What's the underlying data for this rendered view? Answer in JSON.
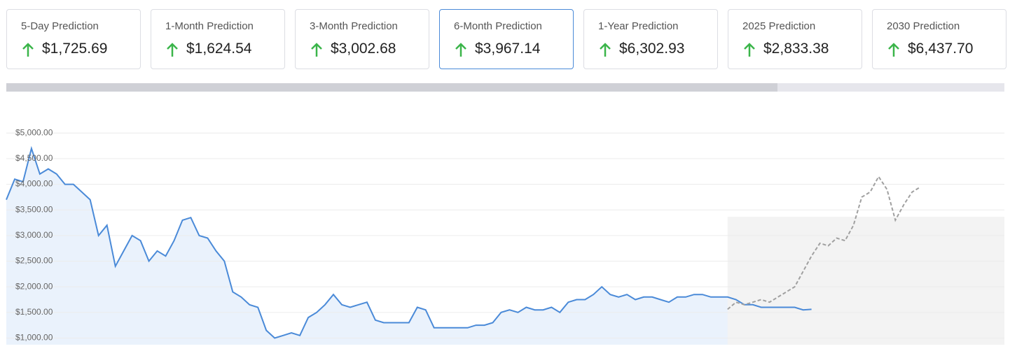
{
  "cards": [
    {
      "label": "5-Day Prediction",
      "value": "$1,725.69"
    },
    {
      "label": "1-Month Prediction",
      "value": "$1,624.54"
    },
    {
      "label": "3-Month Prediction",
      "value": "$3,002.68"
    },
    {
      "label": "6-Month Prediction",
      "value": "$3,967.14"
    },
    {
      "label": "1-Year Prediction",
      "value": "$6,302.93"
    },
    {
      "label": "2025 Prediction",
      "value": "$2,833.38"
    },
    {
      "label": "2030 Prediction",
      "value": "$6,437.70"
    }
  ],
  "chart_data": {
    "type": "line",
    "ylim": [
      870,
      5140
    ],
    "yticks": [
      {
        "value": 1000,
        "label": "$1,000.00"
      },
      {
        "value": 1500,
        "label": "$1,500.00"
      },
      {
        "value": 2000,
        "label": "$2,000.00"
      },
      {
        "value": 2500,
        "label": "$2,500.00"
      },
      {
        "value": 3000,
        "label": "$3,000.00"
      },
      {
        "value": 3500,
        "label": "$3,500.00"
      },
      {
        "value": 4000,
        "label": "$4,000.00"
      },
      {
        "value": 4500,
        "label": "$4,500.00"
      },
      {
        "value": 5000,
        "label": "$5,000.00"
      }
    ],
    "grid": true,
    "series": [
      {
        "color": "#4a8ad8",
        "fill": "#eaf2fc",
        "dashed": false,
        "values": [
          3700,
          4100,
          4050,
          4700,
          4200,
          4300,
          4200,
          4000,
          4000,
          3850,
          3700,
          3000,
          3200,
          2400,
          2700,
          3000,
          2900,
          2500,
          2700,
          2600,
          2900,
          3300,
          3350,
          3000,
          2950,
          2700,
          2500,
          1900,
          1800,
          1650,
          1600,
          1150,
          1000,
          1050,
          1100,
          1050,
          1400,
          1500,
          1650,
          1850,
          1650,
          1600,
          1650,
          1700,
          1350,
          1300,
          1300,
          1300,
          1300,
          1600,
          1550,
          1200,
          1200,
          1200,
          1200,
          1200,
          1250,
          1250,
          1300,
          1500,
          1550,
          1500,
          1600,
          1550,
          1550,
          1600,
          1500,
          1700,
          1750,
          1750,
          1850,
          2000,
          1850,
          1800,
          1850,
          1750,
          1800,
          1800,
          1750,
          1700,
          1800,
          1800,
          1850,
          1850,
          1800,
          1800,
          1800,
          1750,
          1650,
          1650,
          1600,
          1600,
          1600,
          1600,
          1600,
          1550,
          1560,
          null,
          null,
          null,
          null,
          null,
          null,
          null,
          null,
          null,
          null,
          null,
          null,
          null,
          null,
          null,
          null,
          null,
          null,
          null,
          null,
          null,
          null,
          null
        ]
      },
      {
        "color": "#a0a0a0",
        "fill": "#f3f3f3",
        "dashed": true,
        "values": [
          null,
          null,
          null,
          null,
          null,
          null,
          null,
          null,
          null,
          null,
          null,
          null,
          null,
          null,
          null,
          null,
          null,
          null,
          null,
          null,
          null,
          null,
          null,
          null,
          null,
          null,
          null,
          null,
          null,
          null,
          null,
          null,
          null,
          null,
          null,
          null,
          null,
          null,
          null,
          null,
          null,
          null,
          null,
          null,
          null,
          null,
          null,
          null,
          null,
          null,
          null,
          null,
          null,
          null,
          null,
          null,
          null,
          null,
          null,
          null,
          null,
          null,
          null,
          null,
          null,
          null,
          null,
          null,
          null,
          null,
          null,
          null,
          null,
          null,
          null,
          null,
          null,
          null,
          null,
          null,
          null,
          null,
          null,
          null,
          null,
          null,
          1560,
          1700,
          1650,
          1700,
          1750,
          1700,
          1800,
          1900,
          2000,
          2300,
          2600,
          2850,
          2800,
          2950,
          2900,
          3200,
          3750,
          3850,
          4150,
          3900,
          3300,
          3600,
          3850,
          3950
        ]
      }
    ]
  }
}
